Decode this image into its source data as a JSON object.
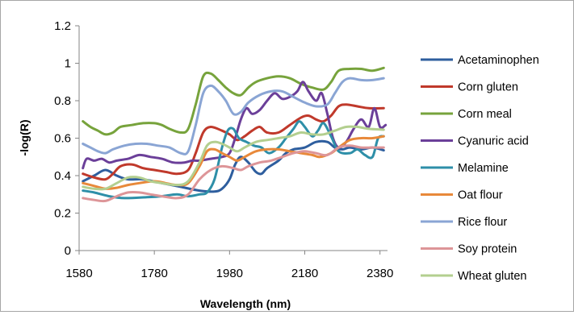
{
  "chart_data": {
    "type": "line",
    "title": "",
    "xlabel": "Wavelength (nm)",
    "ylabel": "-log(R)",
    "xlim": [
      1580,
      2400
    ],
    "ylim": [
      0,
      1.2
    ],
    "x_ticks": [
      1580,
      1780,
      1980,
      2180,
      2380
    ],
    "y_ticks": [
      0,
      0.2,
      0.4,
      0.6,
      0.8,
      1,
      1.2
    ],
    "y_tick_labels": [
      "0",
      "0.2",
      "0.4",
      "0.6",
      "0.8",
      "1",
      "1.2"
    ],
    "grid": false,
    "legend_position": "right",
    "series": [
      {
        "name": "Acetaminophen",
        "color": "#2e5e9e",
        "points": [
          [
            1590,
            0.37
          ],
          [
            1620,
            0.4
          ],
          [
            1650,
            0.43
          ],
          [
            1680,
            0.4
          ],
          [
            1710,
            0.38
          ],
          [
            1750,
            0.38
          ],
          [
            1800,
            0.36
          ],
          [
            1850,
            0.34
          ],
          [
            1900,
            0.32
          ],
          [
            1940,
            0.315
          ],
          [
            1960,
            0.33
          ],
          [
            1980,
            0.38
          ],
          [
            1995,
            0.46
          ],
          [
            2010,
            0.5
          ],
          [
            2030,
            0.47
          ],
          [
            2050,
            0.42
          ],
          [
            2065,
            0.41
          ],
          [
            2080,
            0.44
          ],
          [
            2110,
            0.48
          ],
          [
            2130,
            0.52
          ],
          [
            2150,
            0.54
          ],
          [
            2180,
            0.55
          ],
          [
            2210,
            0.58
          ],
          [
            2240,
            0.58
          ],
          [
            2260,
            0.55
          ],
          [
            2280,
            0.54
          ],
          [
            2300,
            0.55
          ],
          [
            2330,
            0.54
          ],
          [
            2360,
            0.55
          ],
          [
            2390,
            0.535
          ]
        ]
      },
      {
        "name": "Corn gluten",
        "color": "#c0392b",
        "points": [
          [
            1590,
            0.41
          ],
          [
            1620,
            0.39
          ],
          [
            1650,
            0.38
          ],
          [
            1670,
            0.41
          ],
          [
            1690,
            0.45
          ],
          [
            1720,
            0.46
          ],
          [
            1750,
            0.44
          ],
          [
            1780,
            0.43
          ],
          [
            1810,
            0.42
          ],
          [
            1840,
            0.41
          ],
          [
            1870,
            0.43
          ],
          [
            1890,
            0.52
          ],
          [
            1910,
            0.63
          ],
          [
            1930,
            0.66
          ],
          [
            1960,
            0.64
          ],
          [
            1980,
            0.62
          ],
          [
            2000,
            0.59
          ],
          [
            2020,
            0.61
          ],
          [
            2040,
            0.64
          ],
          [
            2060,
            0.66
          ],
          [
            2080,
            0.63
          ],
          [
            2110,
            0.63
          ],
          [
            2140,
            0.67
          ],
          [
            2170,
            0.71
          ],
          [
            2190,
            0.72
          ],
          [
            2210,
            0.7
          ],
          [
            2230,
            0.69
          ],
          [
            2250,
            0.72
          ],
          [
            2270,
            0.77
          ],
          [
            2290,
            0.78
          ],
          [
            2320,
            0.77
          ],
          [
            2350,
            0.76
          ],
          [
            2390,
            0.76
          ]
        ]
      },
      {
        "name": "Corn meal",
        "color": "#77a33c",
        "points": [
          [
            1590,
            0.69
          ],
          [
            1610,
            0.66
          ],
          [
            1630,
            0.64
          ],
          [
            1650,
            0.62
          ],
          [
            1670,
            0.63
          ],
          [
            1690,
            0.66
          ],
          [
            1720,
            0.67
          ],
          [
            1750,
            0.68
          ],
          [
            1780,
            0.68
          ],
          [
            1800,
            0.67
          ],
          [
            1820,
            0.65
          ],
          [
            1850,
            0.63
          ],
          [
            1870,
            0.65
          ],
          [
            1890,
            0.78
          ],
          [
            1910,
            0.93
          ],
          [
            1930,
            0.945
          ],
          [
            1950,
            0.91
          ],
          [
            1970,
            0.87
          ],
          [
            1990,
            0.84
          ],
          [
            2010,
            0.83
          ],
          [
            2030,
            0.87
          ],
          [
            2050,
            0.9
          ],
          [
            2080,
            0.92
          ],
          [
            2110,
            0.93
          ],
          [
            2140,
            0.92
          ],
          [
            2170,
            0.89
          ],
          [
            2200,
            0.87
          ],
          [
            2230,
            0.86
          ],
          [
            2250,
            0.9
          ],
          [
            2270,
            0.96
          ],
          [
            2300,
            0.97
          ],
          [
            2330,
            0.97
          ],
          [
            2360,
            0.96
          ],
          [
            2390,
            0.975
          ]
        ]
      },
      {
        "name": "Cyanuric acid",
        "color": "#6b3f99",
        "points": [
          [
            1590,
            0.44
          ],
          [
            1600,
            0.49
          ],
          [
            1620,
            0.48
          ],
          [
            1640,
            0.49
          ],
          [
            1660,
            0.47
          ],
          [
            1680,
            0.48
          ],
          [
            1710,
            0.49
          ],
          [
            1740,
            0.51
          ],
          [
            1770,
            0.5
          ],
          [
            1800,
            0.49
          ],
          [
            1830,
            0.47
          ],
          [
            1860,
            0.47
          ],
          [
            1880,
            0.48
          ],
          [
            1900,
            0.48
          ],
          [
            1930,
            0.49
          ],
          [
            1960,
            0.5
          ],
          [
            1980,
            0.52
          ],
          [
            1995,
            0.6
          ],
          [
            2010,
            0.7
          ],
          [
            2025,
            0.76
          ],
          [
            2040,
            0.73
          ],
          [
            2060,
            0.75
          ],
          [
            2080,
            0.8
          ],
          [
            2100,
            0.84
          ],
          [
            2120,
            0.81
          ],
          [
            2140,
            0.82
          ],
          [
            2160,
            0.85
          ],
          [
            2175,
            0.9
          ],
          [
            2190,
            0.85
          ],
          [
            2210,
            0.8
          ],
          [
            2225,
            0.84
          ],
          [
            2240,
            0.73
          ],
          [
            2255,
            0.6
          ],
          [
            2270,
            0.55
          ],
          [
            2290,
            0.58
          ],
          [
            2310,
            0.65
          ],
          [
            2330,
            0.7
          ],
          [
            2350,
            0.66
          ],
          [
            2365,
            0.76
          ],
          [
            2380,
            0.66
          ],
          [
            2395,
            0.67
          ]
        ]
      },
      {
        "name": "Melamine",
        "color": "#2e8fa8",
        "points": [
          [
            1590,
            0.32
          ],
          [
            1620,
            0.31
          ],
          [
            1660,
            0.29
          ],
          [
            1700,
            0.28
          ],
          [
            1760,
            0.285
          ],
          [
            1800,
            0.29
          ],
          [
            1840,
            0.3
          ],
          [
            1870,
            0.29
          ],
          [
            1900,
            0.3
          ],
          [
            1920,
            0.31
          ],
          [
            1940,
            0.38
          ],
          [
            1960,
            0.55
          ],
          [
            1975,
            0.64
          ],
          [
            1990,
            0.65
          ],
          [
            2005,
            0.6
          ],
          [
            2025,
            0.58
          ],
          [
            2045,
            0.56
          ],
          [
            2065,
            0.55
          ],
          [
            2085,
            0.52
          ],
          [
            2110,
            0.55
          ],
          [
            2130,
            0.6
          ],
          [
            2150,
            0.65
          ],
          [
            2165,
            0.69
          ],
          [
            2180,
            0.66
          ],
          [
            2200,
            0.61
          ],
          [
            2215,
            0.64
          ],
          [
            2230,
            0.68
          ],
          [
            2250,
            0.61
          ],
          [
            2270,
            0.53
          ],
          [
            2300,
            0.52
          ],
          [
            2320,
            0.54
          ],
          [
            2340,
            0.51
          ],
          [
            2360,
            0.5
          ],
          [
            2375,
            0.6
          ],
          [
            2390,
            0.61
          ]
        ]
      },
      {
        "name": "Oat flour",
        "color": "#e8893a",
        "points": [
          [
            1590,
            0.36
          ],
          [
            1620,
            0.345
          ],
          [
            1650,
            0.33
          ],
          [
            1680,
            0.335
          ],
          [
            1710,
            0.35
          ],
          [
            1740,
            0.36
          ],
          [
            1780,
            0.37
          ],
          [
            1810,
            0.36
          ],
          [
            1840,
            0.35
          ],
          [
            1870,
            0.36
          ],
          [
            1900,
            0.45
          ],
          [
            1920,
            0.53
          ],
          [
            1940,
            0.54
          ],
          [
            1960,
            0.52
          ],
          [
            1980,
            0.5
          ],
          [
            2000,
            0.48
          ],
          [
            2020,
            0.5
          ],
          [
            2050,
            0.53
          ],
          [
            2080,
            0.54
          ],
          [
            2110,
            0.54
          ],
          [
            2140,
            0.53
          ],
          [
            2170,
            0.52
          ],
          [
            2200,
            0.51
          ],
          [
            2220,
            0.5
          ],
          [
            2250,
            0.52
          ],
          [
            2270,
            0.55
          ],
          [
            2300,
            0.59
          ],
          [
            2330,
            0.6
          ],
          [
            2360,
            0.6
          ],
          [
            2390,
            0.61
          ]
        ]
      },
      {
        "name": "Rice flour",
        "color": "#8aa5d4",
        "points": [
          [
            1590,
            0.57
          ],
          [
            1610,
            0.55
          ],
          [
            1630,
            0.53
          ],
          [
            1650,
            0.52
          ],
          [
            1670,
            0.54
          ],
          [
            1700,
            0.56
          ],
          [
            1730,
            0.57
          ],
          [
            1760,
            0.57
          ],
          [
            1790,
            0.56
          ],
          [
            1820,
            0.55
          ],
          [
            1850,
            0.52
          ],
          [
            1870,
            0.53
          ],
          [
            1890,
            0.67
          ],
          [
            1910,
            0.84
          ],
          [
            1930,
            0.88
          ],
          [
            1950,
            0.85
          ],
          [
            1970,
            0.8
          ],
          [
            1990,
            0.73
          ],
          [
            2010,
            0.74
          ],
          [
            2030,
            0.79
          ],
          [
            2060,
            0.83
          ],
          [
            2090,
            0.85
          ],
          [
            2120,
            0.85
          ],
          [
            2150,
            0.82
          ],
          [
            2180,
            0.79
          ],
          [
            2210,
            0.77
          ],
          [
            2240,
            0.78
          ],
          [
            2260,
            0.84
          ],
          [
            2280,
            0.9
          ],
          [
            2300,
            0.92
          ],
          [
            2330,
            0.91
          ],
          [
            2360,
            0.91
          ],
          [
            2390,
            0.92
          ]
        ]
      },
      {
        "name": "Soy protein",
        "color": "#dd9598",
        "points": [
          [
            1590,
            0.28
          ],
          [
            1620,
            0.27
          ],
          [
            1650,
            0.265
          ],
          [
            1680,
            0.29
          ],
          [
            1710,
            0.31
          ],
          [
            1740,
            0.31
          ],
          [
            1770,
            0.3
          ],
          [
            1800,
            0.29
          ],
          [
            1840,
            0.28
          ],
          [
            1870,
            0.3
          ],
          [
            1900,
            0.38
          ],
          [
            1930,
            0.43
          ],
          [
            1960,
            0.45
          ],
          [
            1990,
            0.44
          ],
          [
            2010,
            0.43
          ],
          [
            2030,
            0.45
          ],
          [
            2060,
            0.47
          ],
          [
            2090,
            0.48
          ],
          [
            2120,
            0.5
          ],
          [
            2150,
            0.52
          ],
          [
            2180,
            0.53
          ],
          [
            2210,
            0.52
          ],
          [
            2240,
            0.51
          ],
          [
            2270,
            0.55
          ],
          [
            2300,
            0.56
          ],
          [
            2330,
            0.55
          ],
          [
            2360,
            0.55
          ],
          [
            2390,
            0.55
          ]
        ]
      },
      {
        "name": "Wheat gluten",
        "color": "#b3cf8f",
        "points": [
          [
            1590,
            0.34
          ],
          [
            1620,
            0.33
          ],
          [
            1650,
            0.33
          ],
          [
            1680,
            0.36
          ],
          [
            1710,
            0.39
          ],
          [
            1740,
            0.39
          ],
          [
            1770,
            0.37
          ],
          [
            1800,
            0.36
          ],
          [
            1840,
            0.35
          ],
          [
            1870,
            0.37
          ],
          [
            1900,
            0.47
          ],
          [
            1920,
            0.56
          ],
          [
            1940,
            0.58
          ],
          [
            1960,
            0.57
          ],
          [
            1980,
            0.55
          ],
          [
            2000,
            0.53
          ],
          [
            2020,
            0.55
          ],
          [
            2050,
            0.58
          ],
          [
            2080,
            0.59
          ],
          [
            2110,
            0.6
          ],
          [
            2140,
            0.61
          ],
          [
            2170,
            0.63
          ],
          [
            2200,
            0.62
          ],
          [
            2230,
            0.62
          ],
          [
            2260,
            0.64
          ],
          [
            2290,
            0.66
          ],
          [
            2320,
            0.66
          ],
          [
            2350,
            0.65
          ],
          [
            2390,
            0.645
          ]
        ]
      }
    ]
  }
}
